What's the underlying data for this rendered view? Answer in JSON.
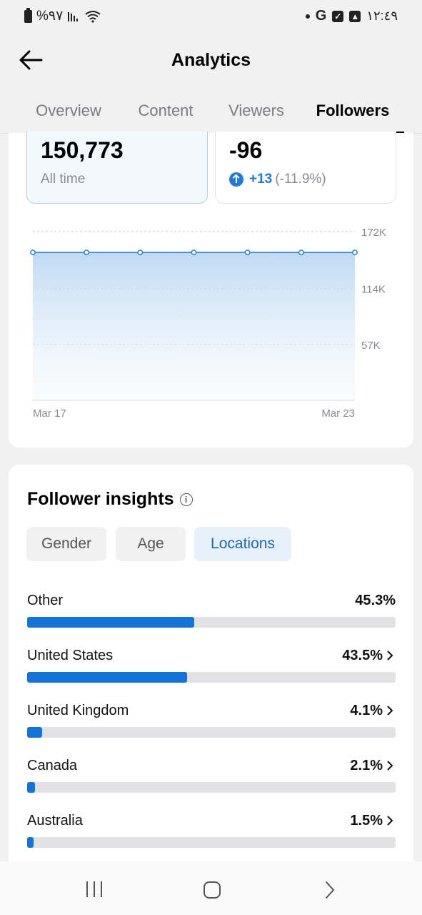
{
  "status_bar": {
    "battery": "%٩٧",
    "time": "١٢:٤٩",
    "icons": [
      "battery-icon",
      "signal-icon",
      "wifi-icon",
      "dot-icon",
      "google-icon",
      "check-box-icon",
      "gallery-icon"
    ]
  },
  "header": {
    "title": "Analytics",
    "tabs": [
      {
        "label": "Overview"
      },
      {
        "label": "Content"
      },
      {
        "label": "Viewers"
      },
      {
        "label": "Followers"
      }
    ],
    "active_tab": "Followers"
  },
  "summary": {
    "total": {
      "value": "150,773",
      "label": "All time"
    },
    "net": {
      "value": "-96",
      "change": "+13",
      "change_pct": "(-11.9%)"
    }
  },
  "chart_data": {
    "type": "area",
    "x": [
      "Mar 17",
      "Mar 18",
      "Mar 19",
      "Mar 20",
      "Mar 21",
      "Mar 22",
      "Mar 23"
    ],
    "series": [
      {
        "values": [
          150773,
          150773,
          150773,
          150773,
          150773,
          150773,
          150773
        ]
      }
    ],
    "ylim": [
      0,
      172000
    ],
    "y_ticks": [
      {
        "value": 172000,
        "label": "172K"
      },
      {
        "value": 114000,
        "label": "114K"
      },
      {
        "value": 57000,
        "label": "57K"
      }
    ],
    "x_tick_labels": [
      {
        "label": "Mar 17",
        "index": 0
      },
      {
        "label": "Mar 23",
        "index": 6
      }
    ],
    "grid": true,
    "color": "#1e7bd6"
  },
  "insights": {
    "title": "Follower insights",
    "chips": [
      {
        "label": "Gender"
      },
      {
        "label": "Age"
      },
      {
        "label": "Locations"
      }
    ],
    "active_chip": "Locations",
    "locations": [
      {
        "name": "Other",
        "pct_label": "45.3%",
        "pct": 45.3,
        "arrow": false
      },
      {
        "name": "United States",
        "pct_label": "43.5%",
        "pct": 43.5,
        "arrow": true
      },
      {
        "name": "United Kingdom",
        "pct_label": "4.1%",
        "pct": 4.1,
        "arrow": true
      },
      {
        "name": "Canada",
        "pct_label": "2.1%",
        "pct": 2.1,
        "arrow": true
      },
      {
        "name": "Australia",
        "pct_label": "1.5%",
        "pct": 1.5,
        "arrow": true
      }
    ]
  },
  "nav_bar": {
    "icons": [
      "recent-apps-icon",
      "home-icon",
      "back-nav-icon"
    ]
  }
}
